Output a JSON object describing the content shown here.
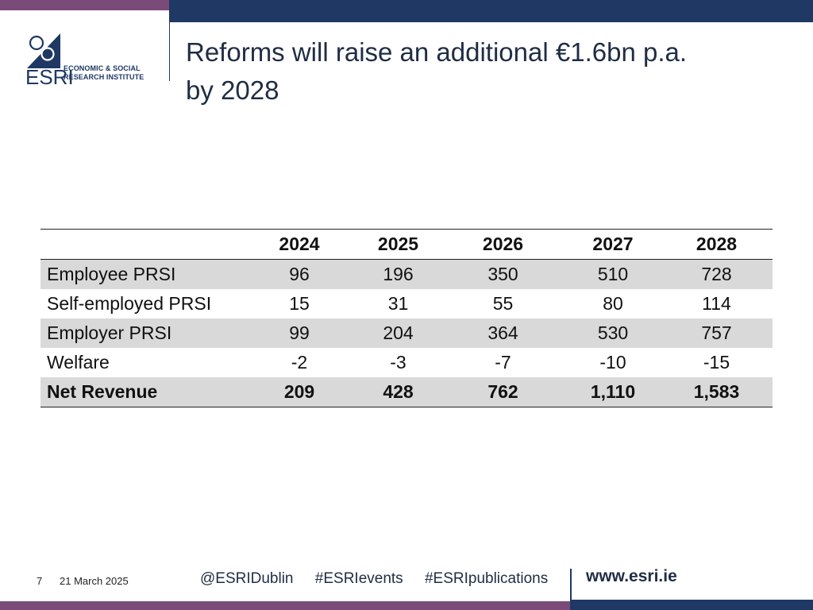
{
  "header": {
    "title_line1": "Reforms will raise an additional €1.6bn p.a.",
    "title_line2": "by 2028"
  },
  "logo": {
    "acronym": "ESRI",
    "name_line1": "ECONOMIC & SOCIAL",
    "name_line2": "RESEARCH INSTITUTE",
    "icon": "esri-logo-icon"
  },
  "table": {
    "columns": [
      "",
      "2024",
      "2025",
      "2026",
      "2027",
      "2028"
    ],
    "rows": [
      {
        "label": "Employee PRSI",
        "values": [
          "96",
          "196",
          "350",
          "510",
          "728"
        ]
      },
      {
        "label": "Self-employed PRSI",
        "values": [
          "15",
          "31",
          "55",
          "80",
          "114"
        ]
      },
      {
        "label": "Employer PRSI",
        "values": [
          "99",
          "204",
          "364",
          "530",
          "757"
        ]
      },
      {
        "label": "Welfare",
        "values": [
          "-2",
          "-3",
          "-7",
          "-10",
          "-15"
        ]
      },
      {
        "label": "Net Revenue",
        "values": [
          "209",
          "428",
          "762",
          "1,110",
          "1,583"
        ]
      }
    ]
  },
  "footer": {
    "page_number": "7",
    "date": "21 March 2025",
    "twitter": "@ESRIDublin",
    "hashtag_events": "#ESRIevents",
    "hashtag_publications": "#ESRIpublications",
    "url": "www.esri.ie"
  },
  "colors": {
    "navy": "#1f3864",
    "purple": "#7a4b79",
    "row_shade": "#d9d9d9"
  }
}
